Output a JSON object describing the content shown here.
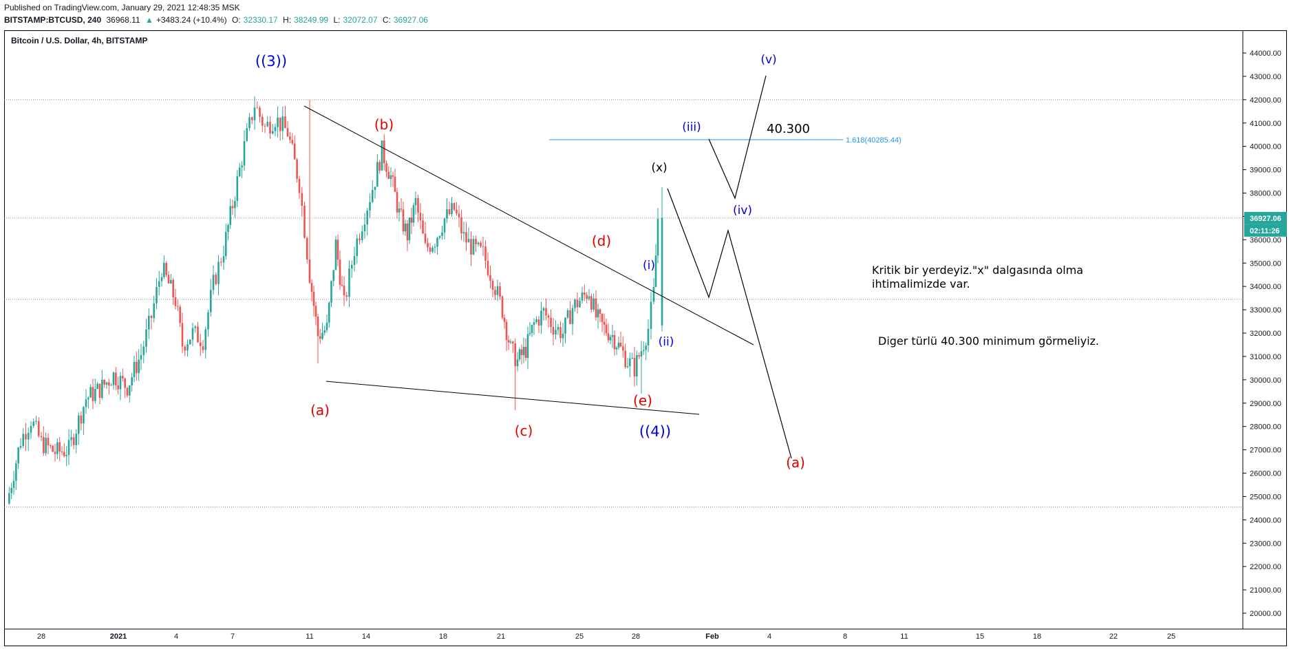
{
  "header": {
    "published": "Published on TradingView.com, January 29, 2021 12:48:35 MSK",
    "symbol": "BITSTAMP:BTCUSD, 240",
    "last": "36968.11",
    "change_arrow": "▲",
    "change": "+3483.24 (+10.4%)",
    "o_label": "O:",
    "o": "32330.17",
    "h_label": "H:",
    "h": "38249.99",
    "l_label": "L:",
    "l": "32072.07",
    "c_label": "C:",
    "c": "36927.06"
  },
  "colors": {
    "up": "#26a69a",
    "down": "#ef5350",
    "wave_red": "#e00000",
    "wave_blue": "#0000e6",
    "fib": "#2196f3",
    "price_tag": "#26a69a"
  },
  "chart_data": {
    "type": "candlestick",
    "title": "Bitcoin / U.S. Dollar, 4h, BITSTAMP",
    "ylim": [
      19600,
      44700
    ],
    "y_ticks": [
      20000,
      21000,
      22000,
      23000,
      24000,
      25000,
      26000,
      27000,
      28000,
      29000,
      30000,
      31000,
      32000,
      33000,
      34000,
      35000,
      36000,
      37000,
      38000,
      39000,
      40000,
      41000,
      42000,
      43000,
      44000
    ],
    "x_tick_labels": [
      "28",
      "2021",
      "4",
      "7",
      "11",
      "14",
      "18",
      "21",
      "25",
      "28",
      "Feb",
      "4",
      "8",
      "11",
      "15",
      "18",
      "22",
      "25"
    ],
    "price_label": "36927.06",
    "countdown_label": "02:11:26",
    "dotted_levels": [
      42000,
      36927.06,
      33450,
      24550
    ],
    "fib_level": {
      "label": "1.618(40285.44)",
      "value": 40285.44
    },
    "candles": [],
    "annotations": {
      "wave_3": "((3))",
      "wave_4": "((4))",
      "a1": "(a)",
      "b": "(b)",
      "c": "(c)",
      "d": "(d)",
      "e": "(e)",
      "x": "(x)",
      "i": "(i)",
      "ii": "(ii)",
      "iii": "(iii)",
      "iv": "(iv)",
      "v": "(v)",
      "a2": "(a)",
      "target": "40.300",
      "note1_line1": "Kritik bir yerdeyiz.\"x\" dalgasında olma",
      "note1_line2": "ihtimalimizde var.",
      "note2": "Diger türlü 40.300 minimum görmeliyiz."
    }
  }
}
